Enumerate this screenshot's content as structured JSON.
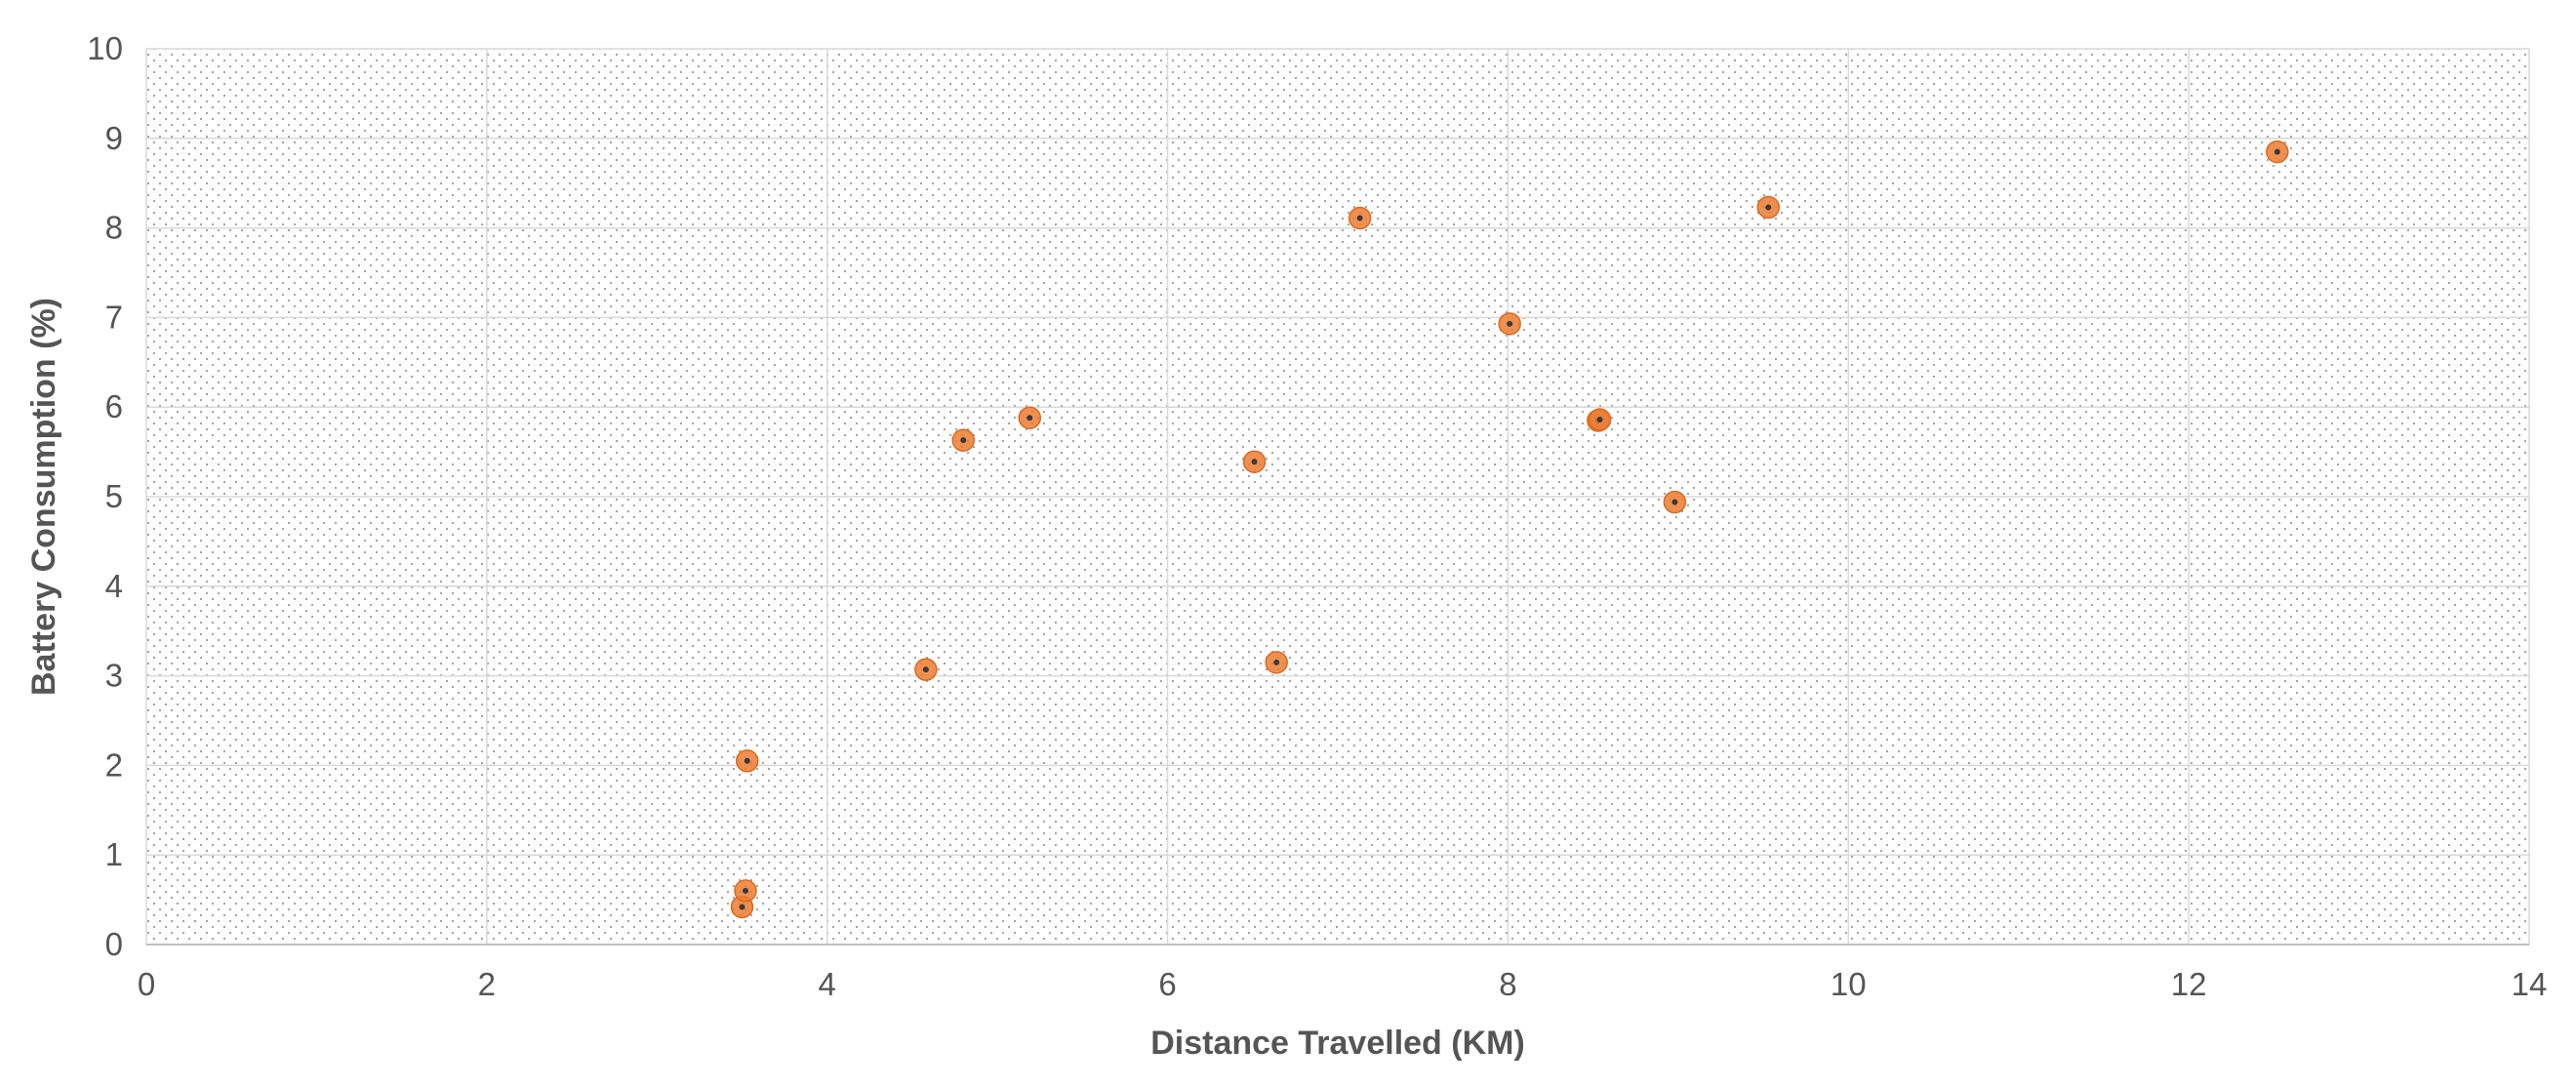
{
  "chart_data": {
    "type": "scatter",
    "title": "",
    "xlabel": "Distance Travelled (KM)",
    "ylabel": "Battery Consumption (%)",
    "xlim": [
      0,
      14
    ],
    "ylim": [
      0,
      10
    ],
    "xticks": [
      0,
      2,
      4,
      6,
      8,
      10,
      12,
      14
    ],
    "yticks": [
      0,
      1,
      2,
      3,
      4,
      5,
      6,
      7,
      8,
      9,
      10
    ],
    "grid": true,
    "legend": "none",
    "series": [
      {
        "color": "#ED7D31",
        "points": [
          {
            "x": 3.5,
            "y": 0.42
          },
          {
            "x": 3.52,
            "y": 0.6
          },
          {
            "x": 3.53,
            "y": 2.05
          },
          {
            "x": 4.58,
            "y": 3.07
          },
          {
            "x": 4.8,
            "y": 5.63
          },
          {
            "x": 5.19,
            "y": 5.88
          },
          {
            "x": 6.51,
            "y": 5.39
          },
          {
            "x": 6.64,
            "y": 3.15
          },
          {
            "x": 7.13,
            "y": 8.11
          },
          {
            "x": 8.01,
            "y": 6.93
          },
          {
            "x": 8.53,
            "y": 5.85
          },
          {
            "x": 8.54,
            "y": 5.86
          },
          {
            "x": 8.98,
            "y": 4.94
          },
          {
            "x": 9.53,
            "y": 8.23
          },
          {
            "x": 12.52,
            "y": 8.85
          }
        ]
      }
    ]
  }
}
